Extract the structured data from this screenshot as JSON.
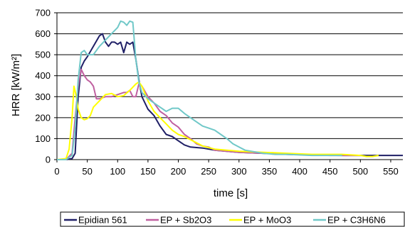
{
  "chart_data": {
    "type": "line",
    "title": "",
    "xlabel": "time [s]",
    "ylabel": "HRR [kW/m²]",
    "xlim": [
      0,
      570
    ],
    "ylim": [
      0,
      700
    ],
    "xticks": [
      0,
      50,
      100,
      150,
      200,
      250,
      300,
      350,
      400,
      450,
      500,
      550
    ],
    "yticks": [
      0,
      100,
      200,
      300,
      400,
      500,
      600,
      700
    ],
    "grid": "horizontal",
    "legend_position": "bottom",
    "series": [
      {
        "name": "Epidian 561",
        "color": "#1f1f66",
        "points": [
          [
            0,
            0
          ],
          [
            15,
            0
          ],
          [
            25,
            5
          ],
          [
            30,
            30
          ],
          [
            35,
            300
          ],
          [
            40,
            440
          ],
          [
            45,
            470
          ],
          [
            50,
            490
          ],
          [
            60,
            540
          ],
          [
            70,
            590
          ],
          [
            75,
            600
          ],
          [
            80,
            560
          ],
          [
            85,
            540
          ],
          [
            90,
            560
          ],
          [
            95,
            560
          ],
          [
            100,
            550
          ],
          [
            105,
            560
          ],
          [
            110,
            510
          ],
          [
            115,
            560
          ],
          [
            120,
            550
          ],
          [
            125,
            560
          ],
          [
            130,
            480
          ],
          [
            135,
            380
          ],
          [
            140,
            300
          ],
          [
            150,
            240
          ],
          [
            160,
            210
          ],
          [
            170,
            160
          ],
          [
            180,
            120
          ],
          [
            190,
            110
          ],
          [
            200,
            90
          ],
          [
            210,
            70
          ],
          [
            220,
            60
          ],
          [
            240,
            55
          ],
          [
            260,
            45
          ],
          [
            300,
            35
          ],
          [
            340,
            30
          ],
          [
            380,
            25
          ],
          [
            420,
            22
          ],
          [
            470,
            20
          ],
          [
            520,
            20
          ],
          [
            570,
            20
          ]
        ]
      },
      {
        "name": "EP + Sb2O3",
        "color": "#c060a0",
        "points": [
          [
            0,
            0
          ],
          [
            15,
            0
          ],
          [
            25,
            30
          ],
          [
            30,
            200
          ],
          [
            35,
            350
          ],
          [
            40,
            430
          ],
          [
            45,
            400
          ],
          [
            50,
            380
          ],
          [
            55,
            370
          ],
          [
            60,
            350
          ],
          [
            65,
            290
          ],
          [
            70,
            290
          ],
          [
            80,
            300
          ],
          [
            90,
            300
          ],
          [
            100,
            310
          ],
          [
            110,
            320
          ],
          [
            115,
            320
          ],
          [
            120,
            330
          ],
          [
            125,
            300
          ],
          [
            130,
            300
          ],
          [
            135,
            360
          ],
          [
            140,
            350
          ],
          [
            150,
            300
          ],
          [
            160,
            270
          ],
          [
            170,
            230
          ],
          [
            180,
            210
          ],
          [
            190,
            175
          ],
          [
            200,
            155
          ],
          [
            210,
            120
          ],
          [
            220,
            100
          ],
          [
            230,
            75
          ],
          [
            240,
            65
          ],
          [
            250,
            60
          ],
          [
            260,
            45
          ],
          [
            280,
            40
          ],
          [
            300,
            35
          ],
          [
            340,
            30
          ],
          [
            400,
            25
          ],
          [
            450,
            20
          ],
          [
            500,
            20
          ]
        ]
      },
      {
        "name": "EP + MoO3",
        "color": "#ffff00",
        "points": [
          [
            0,
            0
          ],
          [
            15,
            5
          ],
          [
            20,
            50
          ],
          [
            25,
            200
          ],
          [
            28,
            350
          ],
          [
            32,
            300
          ],
          [
            35,
            240
          ],
          [
            40,
            200
          ],
          [
            45,
            190
          ],
          [
            50,
            195
          ],
          [
            55,
            210
          ],
          [
            60,
            250
          ],
          [
            70,
            280
          ],
          [
            80,
            310
          ],
          [
            90,
            315
          ],
          [
            100,
            300
          ],
          [
            110,
            305
          ],
          [
            120,
            330
          ],
          [
            130,
            360
          ],
          [
            135,
            370
          ],
          [
            140,
            350
          ],
          [
            150,
            280
          ],
          [
            160,
            230
          ],
          [
            170,
            200
          ],
          [
            180,
            170
          ],
          [
            190,
            140
          ],
          [
            200,
            120
          ],
          [
            210,
            110
          ],
          [
            220,
            95
          ],
          [
            230,
            80
          ],
          [
            240,
            65
          ],
          [
            260,
            50
          ],
          [
            280,
            45
          ],
          [
            300,
            40
          ],
          [
            340,
            35
          ],
          [
            380,
            30
          ],
          [
            420,
            25
          ],
          [
            470,
            25
          ],
          [
            500,
            20
          ],
          [
            510,
            15
          ],
          [
            520,
            15
          ],
          [
            530,
            20
          ]
        ]
      },
      {
        "name": "EP + C3H6N6",
        "color": "#70c8c8",
        "points": [
          [
            0,
            0
          ],
          [
            15,
            0
          ],
          [
            25,
            20
          ],
          [
            30,
            150
          ],
          [
            35,
            380
          ],
          [
            40,
            510
          ],
          [
            45,
            520
          ],
          [
            50,
            500
          ],
          [
            60,
            500
          ],
          [
            70,
            540
          ],
          [
            80,
            570
          ],
          [
            90,
            600
          ],
          [
            100,
            630
          ],
          [
            105,
            660
          ],
          [
            110,
            655
          ],
          [
            115,
            640
          ],
          [
            120,
            660
          ],
          [
            125,
            655
          ],
          [
            130,
            480
          ],
          [
            135,
            370
          ],
          [
            140,
            320
          ],
          [
            150,
            290
          ],
          [
            160,
            270
          ],
          [
            170,
            250
          ],
          [
            180,
            230
          ],
          [
            190,
            245
          ],
          [
            200,
            245
          ],
          [
            210,
            220
          ],
          [
            220,
            200
          ],
          [
            230,
            180
          ],
          [
            240,
            160
          ],
          [
            250,
            150
          ],
          [
            260,
            140
          ],
          [
            270,
            120
          ],
          [
            280,
            100
          ],
          [
            290,
            75
          ],
          [
            300,
            60
          ],
          [
            310,
            45
          ],
          [
            320,
            40
          ],
          [
            340,
            30
          ],
          [
            360,
            25
          ],
          [
            380,
            25
          ],
          [
            420,
            20
          ],
          [
            470,
            20
          ]
        ]
      }
    ]
  }
}
